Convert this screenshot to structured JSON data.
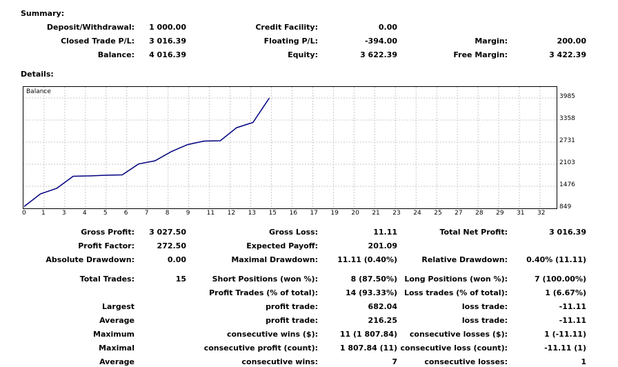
{
  "summary": {
    "title": "Summary:",
    "deposit_label": "Deposit/Withdrawal:",
    "deposit_value": "1 000.00",
    "credit_label": "Credit Facility:",
    "credit_value": "0.00",
    "closed_label": "Closed Trade P/L:",
    "closed_value": "3 016.39",
    "floating_label": "Floating P/L:",
    "floating_value": "-394.00",
    "margin_label": "Margin:",
    "margin_value": "200.00",
    "balance_label": "Balance:",
    "balance_value": "4 016.39",
    "equity_label": "Equity:",
    "equity_value": "3 622.39",
    "free_margin_label": "Free Margin:",
    "free_margin_value": "3 422.39"
  },
  "details": {
    "title": "Details:"
  },
  "chart_data": {
    "type": "line",
    "title": "Balance",
    "x": [
      0,
      1,
      2,
      3,
      4,
      5,
      6,
      7,
      8,
      9,
      10,
      11,
      12,
      13,
      14,
      15
    ],
    "series": [
      {
        "values": [
          900,
          1260,
          1420,
          1760,
          1770,
          1790,
          1800,
          2110,
          2200,
          2460,
          2660,
          2760,
          2770,
          3140,
          3290,
          3985
        ]
      }
    ],
    "xticks": [
      "0",
      "1",
      "3",
      "4",
      "5",
      "6",
      "7",
      "8",
      "9",
      "11",
      "12",
      "13",
      "15",
      "16",
      "17",
      "19",
      "20",
      "21",
      "23",
      "24",
      "25",
      "27",
      "28",
      "29",
      "31",
      "32"
    ],
    "yticks": [
      "3985",
      "3358",
      "2731",
      "2103",
      "1476",
      "849"
    ],
    "ylim": [
      849,
      3985
    ],
    "grid": true,
    "line_color": "#000080"
  },
  "stats": {
    "gross_profit_label": "Gross Profit:",
    "gross_profit_value": "3 027.50",
    "gross_loss_label": "Gross Loss:",
    "gross_loss_value": "11.11",
    "total_net_profit_label": "Total Net Profit:",
    "total_net_profit_value": "3 016.39",
    "profit_factor_label": "Profit Factor:",
    "profit_factor_value": "272.50",
    "expected_payoff_label": "Expected Payoff:",
    "expected_payoff_value": "201.09",
    "abs_drawdown_label": "Absolute Drawdown:",
    "abs_drawdown_value": "0.00",
    "max_drawdown_label": "Maximal Drawdown:",
    "max_drawdown_value": "11.11 (0.40%)",
    "rel_drawdown_label": "Relative Drawdown:",
    "rel_drawdown_value": "0.40% (11.11)",
    "total_trades_label": "Total Trades:",
    "total_trades_value": "15",
    "short_label": "Short Positions (won %):",
    "short_value": "8 (87.50%)",
    "long_label": "Long Positions (won %):",
    "long_value": "7 (100.00%)",
    "profit_trades_label": "Profit Trades (% of total):",
    "profit_trades_value": "14 (93.33%)",
    "loss_trades_label": "Loss trades (% of total):",
    "loss_trades_value": "1 (6.67%)",
    "largest_label": "Largest",
    "largest_profit_label": "profit trade:",
    "largest_profit_value": "682.04",
    "largest_loss_label": "loss trade:",
    "largest_loss_value": "-11.11",
    "average_label": "Average",
    "average_profit_label": "profit trade:",
    "average_profit_value": "216.25",
    "average_loss_label": "loss trade:",
    "average_loss_value": "-11.11",
    "maximum_label": "Maximum",
    "max_cons_wins_label": "consecutive wins ($):",
    "max_cons_wins_value": "11 (1 807.84)",
    "max_cons_losses_label": "consecutive losses ($):",
    "max_cons_losses_value": "1 (-11.11)",
    "maximal_label": "Maximal",
    "maximal_profit_label": "consecutive profit (count):",
    "maximal_profit_value": "1 807.84 (11)",
    "maximal_loss_label": "consecutive loss (count):",
    "maximal_loss_value": "-11.11 (1)",
    "average2_label": "Average",
    "avg_cons_wins_label": "consecutive wins:",
    "avg_cons_wins_value": "7",
    "avg_cons_losses_label": "consecutive losses:",
    "avg_cons_losses_value": "1"
  }
}
